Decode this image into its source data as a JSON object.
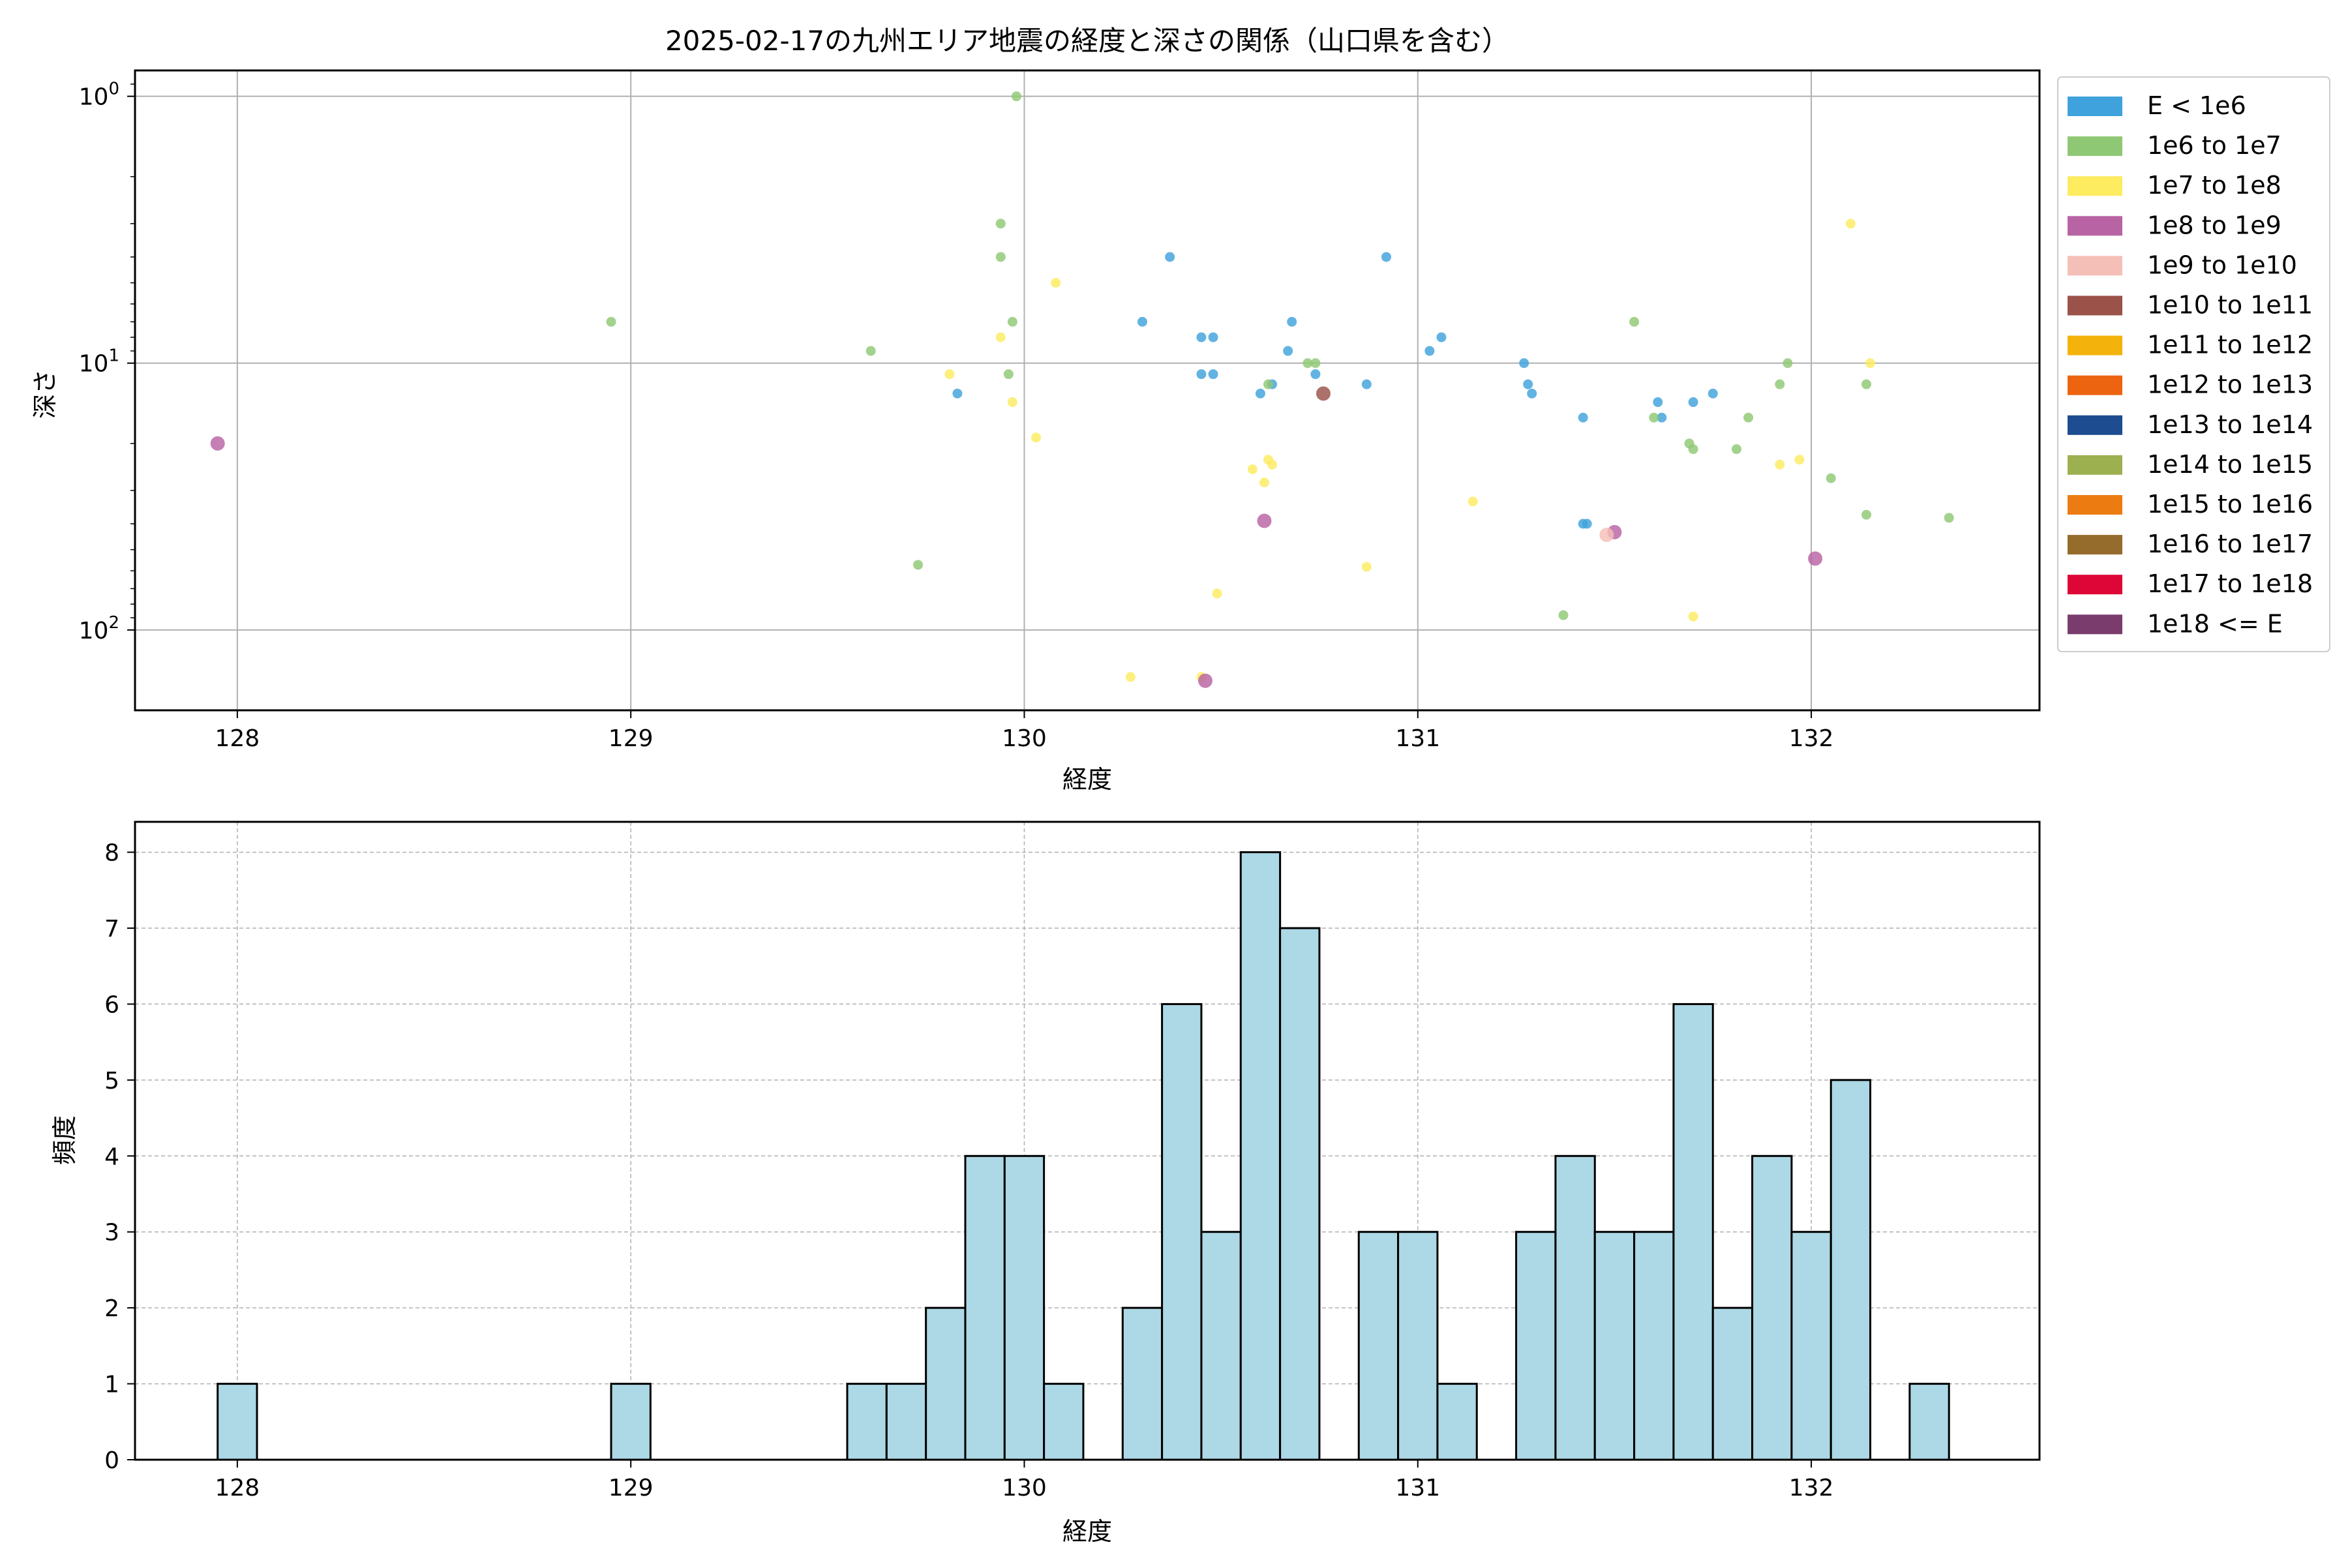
{
  "chart_data": [
    {
      "type": "scatter",
      "title": "2025-02-17の九州エリア地震の経度と深さの関係（山口県を含む）",
      "xlabel": "経度",
      "ylabel": "深さ",
      "xlim": [
        127.74,
        132.58
      ],
      "ylim": [
        200,
        0.8
      ],
      "yscale": "log",
      "y_inverted": true,
      "grid": true,
      "legend_position": "outside-right",
      "xticks": [
        128,
        129,
        130,
        131,
        132
      ],
      "xtick_labels": [
        "128",
        "129",
        "130",
        "131",
        "132"
      ],
      "yticks": [
        1,
        10,
        100
      ],
      "ytick_labels": [
        "10",
        "10",
        "10"
      ],
      "ytick_exponents": [
        "0",
        "1",
        "2"
      ],
      "legend": [
        {
          "label": "E < 1e6",
          "color": "#3fa2dc"
        },
        {
          "label": "1e6 to 1e7",
          "color": "#8fc874"
        },
        {
          "label": "1e7 to 1e8",
          "color": "#fdeb60"
        },
        {
          "label": "1e8 to 1e9",
          "color": "#b863a3"
        },
        {
          "label": "1e9 to 1e10",
          "color": "#f4bfb7"
        },
        {
          "label": "1e10 to 1e11",
          "color": "#9a5249"
        },
        {
          "label": "1e11 to 1e12",
          "color": "#f4b20c"
        },
        {
          "label": "1e12 to 1e13",
          "color": "#ec6410"
        },
        {
          "label": "1e13 to 1e14",
          "color": "#1d4c91"
        },
        {
          "label": "1e14 to 1e15",
          "color": "#9db050"
        },
        {
          "label": "1e15 to 1e16",
          "color": "#ec7c12"
        },
        {
          "label": "1e16 to 1e17",
          "color": "#956c2b"
        },
        {
          "label": "1e17 to 1e18",
          "color": "#dd0636"
        },
        {
          "label": "1e18 <= E",
          "color": "#7a3c6c"
        }
      ],
      "series": [
        {
          "class": 0,
          "points": [
            [
              129.83,
              13
            ],
            [
              130.37,
              4
            ],
            [
              130.3,
              7
            ],
            [
              130.45,
              8
            ],
            [
              130.48,
              8
            ],
            [
              130.45,
              11
            ],
            [
              130.48,
              11
            ],
            [
              130.6,
              13
            ],
            [
              130.63,
              12
            ],
            [
              130.67,
              9
            ],
            [
              130.68,
              7
            ],
            [
              130.74,
              11
            ],
            [
              130.87,
              12
            ],
            [
              130.92,
              4
            ],
            [
              131.03,
              9
            ],
            [
              131.06,
              8
            ],
            [
              131.27,
              10
            ],
            [
              131.28,
              12
            ],
            [
              131.29,
              13
            ],
            [
              131.42,
              16
            ],
            [
              131.42,
              40
            ],
            [
              131.43,
              40
            ],
            [
              131.61,
              14
            ],
            [
              131.62,
              16
            ],
            [
              131.7,
              14
            ],
            [
              131.75,
              13
            ]
          ]
        },
        {
          "class": 1,
          "points": [
            [
              128.95,
              7
            ],
            [
              129.61,
              9
            ],
            [
              129.73,
              57
            ],
            [
              129.94,
              3
            ],
            [
              129.94,
              4
            ],
            [
              129.96,
              11
            ],
            [
              129.97,
              7
            ],
            [
              129.98,
              1.0
            ],
            [
              130.62,
              12
            ],
            [
              130.72,
              10
            ],
            [
              130.74,
              10
            ],
            [
              131.37,
              88
            ],
            [
              131.55,
              7
            ],
            [
              131.6,
              16
            ],
            [
              131.69,
              20
            ],
            [
              131.7,
              21
            ],
            [
              131.81,
              21
            ],
            [
              131.84,
              16
            ],
            [
              131.92,
              12
            ],
            [
              131.94,
              10
            ],
            [
              132.05,
              27
            ],
            [
              132.14,
              12
            ],
            [
              132.14,
              37
            ],
            [
              132.35,
              38
            ]
          ]
        },
        {
          "class": 2,
          "points": [
            [
              129.81,
              11
            ],
            [
              129.94,
              8
            ],
            [
              129.97,
              14
            ],
            [
              130.03,
              19
            ],
            [
              130.08,
              5
            ],
            [
              130.27,
              150
            ],
            [
              130.45,
              150
            ],
            [
              130.49,
              73
            ],
            [
              130.58,
              25
            ],
            [
              130.61,
              28
            ],
            [
              130.62,
              23
            ],
            [
              130.63,
              24
            ],
            [
              130.87,
              58
            ],
            [
              131.14,
              33
            ],
            [
              131.7,
              89
            ],
            [
              131.92,
              24
            ],
            [
              131.97,
              23
            ],
            [
              132.1,
              3
            ],
            [
              132.15,
              10
            ]
          ]
        },
        {
          "class": 3,
          "points": [
            [
              127.95,
              20
            ],
            [
              130.46,
              155
            ],
            [
              130.61,
              39
            ],
            [
              131.5,
              43
            ],
            [
              132.01,
              54
            ]
          ]
        },
        {
          "class": 4,
          "points": [
            [
              131.48,
              44
            ]
          ]
        },
        {
          "class": 5,
          "points": [
            [
              130.76,
              13
            ]
          ]
        }
      ]
    },
    {
      "type": "bar",
      "title": "",
      "xlabel": "経度",
      "ylabel": "頻度",
      "xlim": [
        127.74,
        132.58
      ],
      "ylim": [
        0,
        8.4
      ],
      "grid": true,
      "bar_color": "#add8e6",
      "bar_edge_color": "#000000",
      "xticks": [
        128,
        129,
        130,
        131,
        132
      ],
      "xtick_labels": [
        "128",
        "129",
        "130",
        "131",
        "132"
      ],
      "yticks": [
        0,
        1,
        2,
        3,
        4,
        5,
        6,
        7,
        8
      ],
      "ytick_labels": [
        "0",
        "1",
        "2",
        "3",
        "4",
        "5",
        "6",
        "7",
        "8"
      ],
      "bin_start": 127.95,
      "bin_width": 0.1,
      "values": [
        1,
        0,
        0,
        0,
        0,
        0,
        0,
        0,
        0,
        0,
        1,
        0,
        0,
        0,
        0,
        0,
        1,
        1,
        2,
        4,
        4,
        1,
        0,
        2,
        6,
        3,
        8,
        7,
        0,
        3,
        3,
        1,
        0,
        3,
        4,
        3,
        3,
        6,
        2,
        4,
        3,
        5,
        0,
        1
      ]
    }
  ]
}
